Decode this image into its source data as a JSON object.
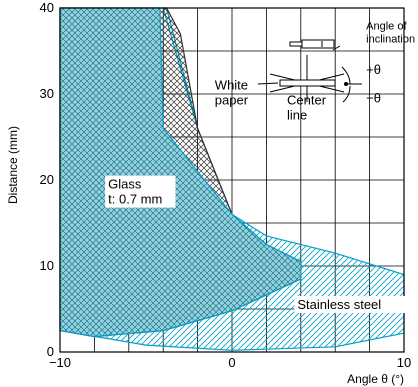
{
  "chart_data": {
    "type": "area",
    "xlabel": "Angle θ (°)",
    "ylabel": "Distance (mm)",
    "xlim": [
      -10,
      10
    ],
    "ylim": [
      0,
      40
    ],
    "x_ticks": [
      -10,
      0,
      10
    ],
    "x_tick_labels": [
      "−10",
      "0",
      "10"
    ],
    "y_ticks": [
      0,
      10,
      20,
      30,
      40
    ],
    "y_tick_labels": [
      "0",
      "10",
      "20",
      "30",
      "40"
    ],
    "grid": true,
    "grid_step": {
      "x": 2,
      "y": 5
    },
    "series": [
      {
        "name": "White paper",
        "pattern": "crosshatch",
        "outline_color": "#333333",
        "boundary": [
          [
            -10,
            2.5
          ],
          [
            -8,
            1.8
          ],
          [
            -4,
            2.5
          ],
          [
            0,
            4.8
          ],
          [
            4,
            8.5
          ],
          [
            4,
            10.5
          ],
          [
            2,
            12.5
          ],
          [
            0,
            16.0
          ],
          [
            -2,
            26.0
          ],
          [
            -3,
            37.0
          ],
          [
            -3.8,
            40
          ],
          [
            -10,
            40
          ]
        ]
      },
      {
        "name": "Glass t: 0.7 mm",
        "pattern": "crosshatch",
        "fill_color": "#8fd3e3",
        "outline_color": "#00a0c8",
        "boundary": [
          [
            -10,
            2.5
          ],
          [
            -8,
            1.8
          ],
          [
            -4,
            2.5
          ],
          [
            0,
            4.8
          ],
          [
            4,
            8.5
          ],
          [
            4,
            10.5
          ],
          [
            2,
            12.5
          ],
          [
            0,
            16.0
          ],
          [
            -4,
            26.0
          ],
          [
            -4.2,
            40
          ],
          [
            -10,
            40
          ]
        ]
      },
      {
        "name": "Stainless steel",
        "pattern": "diagonal-hatch",
        "outline_color": "#00a0c8",
        "boundary": [
          [
            -10,
            2.5
          ],
          [
            -5,
            0.8
          ],
          [
            0,
            0.2
          ],
          [
            6,
            0.6
          ],
          [
            10,
            2.2
          ],
          [
            10,
            9.0
          ],
          [
            6,
            11.5
          ],
          [
            2,
            13.5
          ],
          [
            0,
            16.0
          ],
          [
            -2,
            26.0
          ],
          [
            -4,
            40
          ],
          [
            -3.8,
            40
          ],
          [
            -2,
            26.0
          ],
          [
            0,
            16.0
          ],
          [
            2,
            12.5
          ],
          [
            4,
            10.5
          ],
          [
            4,
            8.5
          ],
          [
            0,
            4.8
          ],
          [
            -4,
            2.5
          ],
          [
            -8,
            1.8
          ],
          [
            -10,
            2.5
          ]
        ]
      }
    ],
    "annotations": [
      {
        "id": "glass",
        "text_lines": [
          "Glass",
          "t: 0.7 mm"
        ],
        "x": -7.2,
        "y": 19.0
      },
      {
        "id": "stainless",
        "text_lines": [
          "Stainless steel"
        ],
        "x": 3.8,
        "y": 5.0
      },
      {
        "id": "white",
        "text_lines": [
          "White",
          "paper"
        ],
        "x": -1.0,
        "y": 30.5
      },
      {
        "id": "center",
        "text_lines": [
          "Center",
          "line"
        ],
        "x": 3.2,
        "y": 28.8
      },
      {
        "id": "angle",
        "text_lines": [
          "Angle of",
          "inclination"
        ],
        "x": 7.8,
        "y": 37.5
      },
      {
        "id": "plus_theta",
        "text_lines": [
          "+θ"
        ],
        "x": 7.8,
        "y": 32.3
      },
      {
        "id": "minus_theta",
        "text_lines": [
          "−θ"
        ],
        "x": 7.8,
        "y": 29.0
      }
    ]
  }
}
